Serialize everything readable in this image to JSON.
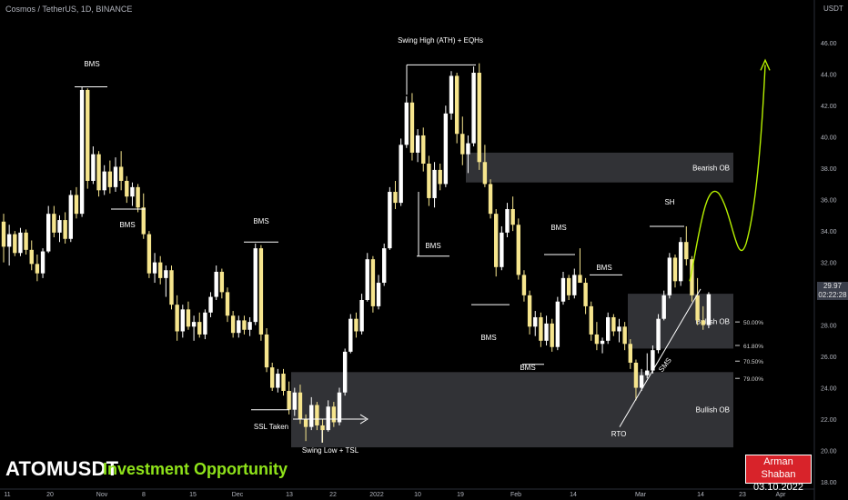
{
  "header": {
    "title": "Cosmos / TetherUS, 1D, BINANCE"
  },
  "bottom": {
    "symbol": "ATOMUSDT",
    "subtitle": "Investment Opportunity"
  },
  "author": {
    "name": "Arman Shaban",
    "date": "03.10.2022"
  },
  "price_tag": {
    "price": "29.97",
    "timer": "02:22:28"
  },
  "colors": {
    "bull": "#ffffff",
    "bear": "#f6e58d",
    "zone": "#3a3b40",
    "projection": "#b6f000",
    "author_bg": "#d8232a"
  },
  "chart_data": {
    "type": "candlestick",
    "unit": "USDT",
    "ylim": [
      18,
      47
    ],
    "y_ticks": [
      "18.00",
      "20.00",
      "22.00",
      "24.00",
      "26.00",
      "28.00",
      "30.00",
      "32.00",
      "34.00",
      "36.00",
      "38.00",
      "40.00",
      "42.00",
      "44.00",
      "46.00"
    ],
    "x_ticks": [
      "11",
      "20",
      "Nov",
      "8",
      "15",
      "Dec",
      "13",
      "22",
      "2022",
      "10",
      "19",
      "Feb",
      "14",
      "Mar",
      "14",
      "23",
      "Apr"
    ],
    "zones": [
      {
        "label": "Bearish OB",
        "from": 37.1,
        "to": 39.0
      },
      {
        "label": "Bullish OB",
        "from": 26.5,
        "to": 30.0
      },
      {
        "label": "Bullish OB",
        "from": 20.2,
        "to": 25.0
      }
    ],
    "fib_levels": [
      {
        "label": "50.00%",
        "value": 28.2
      },
      {
        "label": "61.80%",
        "value": 26.7
      },
      {
        "label": "70.50%",
        "value": 25.7
      },
      {
        "label": "79.00%",
        "value": 24.6
      }
    ],
    "annotations": [
      "BMS",
      "BMS",
      "BMS",
      "Swing High (ATH) + EQHs",
      "BMS",
      "BMS",
      "BMS",
      "BMS",
      "BMS",
      "SH",
      "SSL Taken",
      "Swing Low + TSL",
      "RTO",
      "SMS"
    ],
    "candles": [
      [
        34.6,
        35.1,
        32.0,
        33.0
      ],
      [
        33.0,
        34.4,
        31.8,
        33.8
      ],
      [
        33.8,
        34.0,
        32.4,
        32.6
      ],
      [
        32.6,
        34.2,
        32.4,
        33.9
      ],
      [
        33.9,
        34.1,
        32.5,
        32.8
      ],
      [
        32.8,
        33.4,
        31.5,
        31.9
      ],
      [
        31.9,
        32.5,
        30.8,
        31.3
      ],
      [
        31.3,
        32.9,
        31.0,
        32.7
      ],
      [
        32.7,
        35.6,
        32.6,
        35.1
      ],
      [
        35.1,
        35.6,
        33.6,
        33.9
      ],
      [
        33.9,
        35.0,
        33.3,
        34.7
      ],
      [
        34.7,
        35.2,
        33.2,
        33.5
      ],
      [
        33.5,
        36.6,
        33.3,
        36.3
      ],
      [
        36.3,
        36.8,
        34.8,
        35.1
      ],
      [
        35.1,
        43.2,
        34.9,
        43.0
      ],
      [
        43.0,
        43.1,
        36.7,
        37.2
      ],
      [
        37.2,
        39.4,
        37.0,
        38.9
      ],
      [
        38.9,
        39.1,
        36.2,
        36.6
      ],
      [
        36.6,
        38.2,
        36.3,
        37.8
      ],
      [
        37.8,
        38.5,
        36.4,
        36.8
      ],
      [
        36.8,
        38.7,
        36.5,
        38.1
      ],
      [
        38.1,
        39.1,
        36.6,
        37.2
      ],
      [
        37.2,
        37.5,
        35.8,
        36.2
      ],
      [
        36.2,
        37.1,
        35.6,
        36.8
      ],
      [
        36.8,
        37.0,
        35.2,
        35.5
      ],
      [
        35.5,
        36.4,
        33.5,
        33.8
      ],
      [
        33.8,
        34.0,
        31.0,
        31.3
      ],
      [
        31.3,
        32.6,
        30.7,
        32.0
      ],
      [
        32.0,
        32.4,
        30.6,
        31.0
      ],
      [
        31.0,
        31.8,
        29.8,
        31.5
      ],
      [
        31.5,
        31.8,
        29.0,
        29.3
      ],
      [
        29.3,
        29.9,
        27.0,
        27.6
      ],
      [
        27.6,
        29.3,
        27.2,
        29.0
      ],
      [
        29.0,
        29.5,
        27.7,
        27.9
      ],
      [
        27.9,
        28.6,
        27.0,
        28.2
      ],
      [
        28.2,
        28.8,
        27.2,
        27.4
      ],
      [
        27.4,
        29.0,
        27.1,
        28.8
      ],
      [
        28.8,
        30.1,
        28.5,
        29.8
      ],
      [
        29.8,
        31.8,
        29.6,
        31.4
      ],
      [
        31.4,
        31.6,
        29.7,
        30.1
      ],
      [
        30.1,
        30.4,
        28.2,
        28.6
      ],
      [
        28.6,
        28.9,
        27.2,
        27.5
      ],
      [
        27.5,
        28.6,
        27.2,
        28.3
      ],
      [
        28.3,
        28.6,
        27.4,
        27.7
      ],
      [
        27.7,
        28.5,
        27.3,
        28.2
      ],
      [
        28.2,
        33.2,
        28.0,
        32.9
      ],
      [
        32.9,
        33.1,
        27.0,
        27.4
      ],
      [
        27.4,
        27.8,
        25.0,
        25.3
      ],
      [
        25.3,
        25.6,
        23.8,
        24.0
      ],
      [
        24.0,
        25.2,
        23.7,
        24.9
      ],
      [
        24.9,
        25.2,
        23.5,
        23.8
      ],
      [
        23.8,
        24.4,
        22.3,
        22.6
      ],
      [
        22.6,
        24.0,
        22.2,
        23.7
      ],
      [
        23.7,
        24.2,
        21.7,
        22.0
      ],
      [
        22.0,
        22.3,
        20.6,
        21.5
      ],
      [
        21.5,
        23.4,
        21.3,
        22.9
      ],
      [
        22.9,
        23.1,
        21.3,
        21.6
      ],
      [
        21.6,
        22.0,
        20.5,
        21.3
      ],
      [
        21.3,
        23.2,
        21.2,
        22.8
      ],
      [
        22.8,
        23.1,
        21.5,
        21.8
      ],
      [
        21.8,
        24.0,
        21.6,
        23.7
      ],
      [
        23.7,
        26.5,
        23.5,
        26.3
      ],
      [
        26.3,
        28.7,
        26.2,
        28.4
      ],
      [
        28.4,
        28.8,
        27.2,
        27.6
      ],
      [
        27.6,
        30.0,
        27.4,
        29.6
      ],
      [
        29.6,
        32.6,
        29.5,
        32.2
      ],
      [
        32.2,
        32.4,
        28.8,
        29.2
      ],
      [
        29.2,
        31.2,
        29.0,
        30.7
      ],
      [
        30.7,
        33.2,
        30.5,
        32.9
      ],
      [
        32.9,
        36.8,
        32.8,
        36.5
      ],
      [
        36.5,
        37.2,
        35.4,
        35.8
      ],
      [
        35.8,
        39.9,
        35.6,
        39.5
      ],
      [
        39.5,
        42.6,
        39.3,
        42.2
      ],
      [
        42.2,
        42.8,
        38.5,
        39.0
      ],
      [
        39.0,
        40.5,
        38.4,
        40.1
      ],
      [
        40.1,
        40.6,
        37.8,
        38.3
      ],
      [
        38.3,
        38.8,
        35.6,
        36.1
      ],
      [
        36.1,
        38.4,
        35.5,
        37.9
      ],
      [
        37.9,
        38.3,
        36.6,
        37.0
      ],
      [
        37.0,
        42.0,
        36.8,
        41.5
      ],
      [
        41.5,
        44.2,
        41.1,
        43.9
      ],
      [
        43.9,
        44.1,
        39.6,
        40.2
      ],
      [
        40.2,
        41.3,
        38.2,
        38.9
      ],
      [
        38.9,
        40.1,
        37.7,
        39.6
      ],
      [
        39.6,
        44.5,
        39.4,
        44.1
      ],
      [
        44.1,
        44.7,
        37.9,
        38.4
      ],
      [
        38.4,
        39.5,
        36.8,
        37.0
      ],
      [
        37.0,
        37.3,
        34.8,
        35.1
      ],
      [
        35.1,
        35.4,
        31.1,
        31.7
      ],
      [
        31.7,
        34.3,
        31.5,
        33.9
      ],
      [
        33.9,
        35.8,
        33.6,
        35.4
      ],
      [
        35.4,
        36.2,
        34.0,
        34.4
      ],
      [
        34.4,
        34.8,
        30.9,
        31.2
      ],
      [
        31.2,
        31.5,
        29.5,
        29.9
      ],
      [
        29.9,
        30.2,
        27.4,
        27.9
      ],
      [
        27.9,
        28.9,
        27.3,
        28.5
      ],
      [
        28.5,
        28.8,
        26.6,
        27.0
      ],
      [
        27.0,
        28.6,
        26.7,
        28.1
      ],
      [
        28.1,
        28.4,
        26.3,
        26.6
      ],
      [
        26.6,
        29.8,
        26.4,
        29.5
      ],
      [
        29.5,
        31.4,
        29.3,
        31.0
      ],
      [
        31.0,
        31.2,
        29.6,
        29.9
      ],
      [
        29.9,
        31.6,
        29.7,
        31.2
      ],
      [
        31.2,
        32.9,
        30.9,
        30.7
      ],
      [
        30.7,
        31.0,
        28.7,
        29.2
      ],
      [
        29.2,
        29.5,
        27.0,
        27.4
      ],
      [
        27.4,
        28.2,
        26.4,
        26.8
      ],
      [
        26.8,
        27.2,
        26.2,
        27.0
      ],
      [
        27.0,
        28.8,
        26.8,
        28.5
      ],
      [
        28.5,
        28.7,
        27.3,
        27.6
      ],
      [
        27.6,
        28.4,
        26.9,
        27.9
      ],
      [
        27.9,
        28.2,
        26.4,
        26.8
      ],
      [
        26.8,
        27.1,
        25.2,
        25.6
      ],
      [
        25.6,
        25.8,
        23.2,
        24.0
      ],
      [
        24.0,
        25.2,
        23.8,
        24.8
      ],
      [
        24.8,
        26.2,
        24.6,
        25.1
      ],
      [
        25.1,
        26.7,
        24.9,
        26.4
      ],
      [
        26.4,
        28.7,
        26.2,
        28.4
      ],
      [
        28.4,
        30.2,
        28.3,
        29.9
      ],
      [
        29.9,
        32.6,
        29.7,
        32.3
      ],
      [
        32.3,
        32.5,
        30.4,
        30.8
      ],
      [
        30.8,
        33.6,
        30.5,
        33.3
      ],
      [
        33.3,
        34.3,
        31.8,
        32.2
      ],
      [
        32.2,
        32.4,
        29.5,
        29.9
      ],
      [
        29.9,
        31.0,
        28.0,
        28.3
      ],
      [
        28.3,
        29.2,
        27.7,
        28.0
      ],
      [
        28.0,
        30.1,
        27.8,
        29.97
      ]
    ]
  }
}
